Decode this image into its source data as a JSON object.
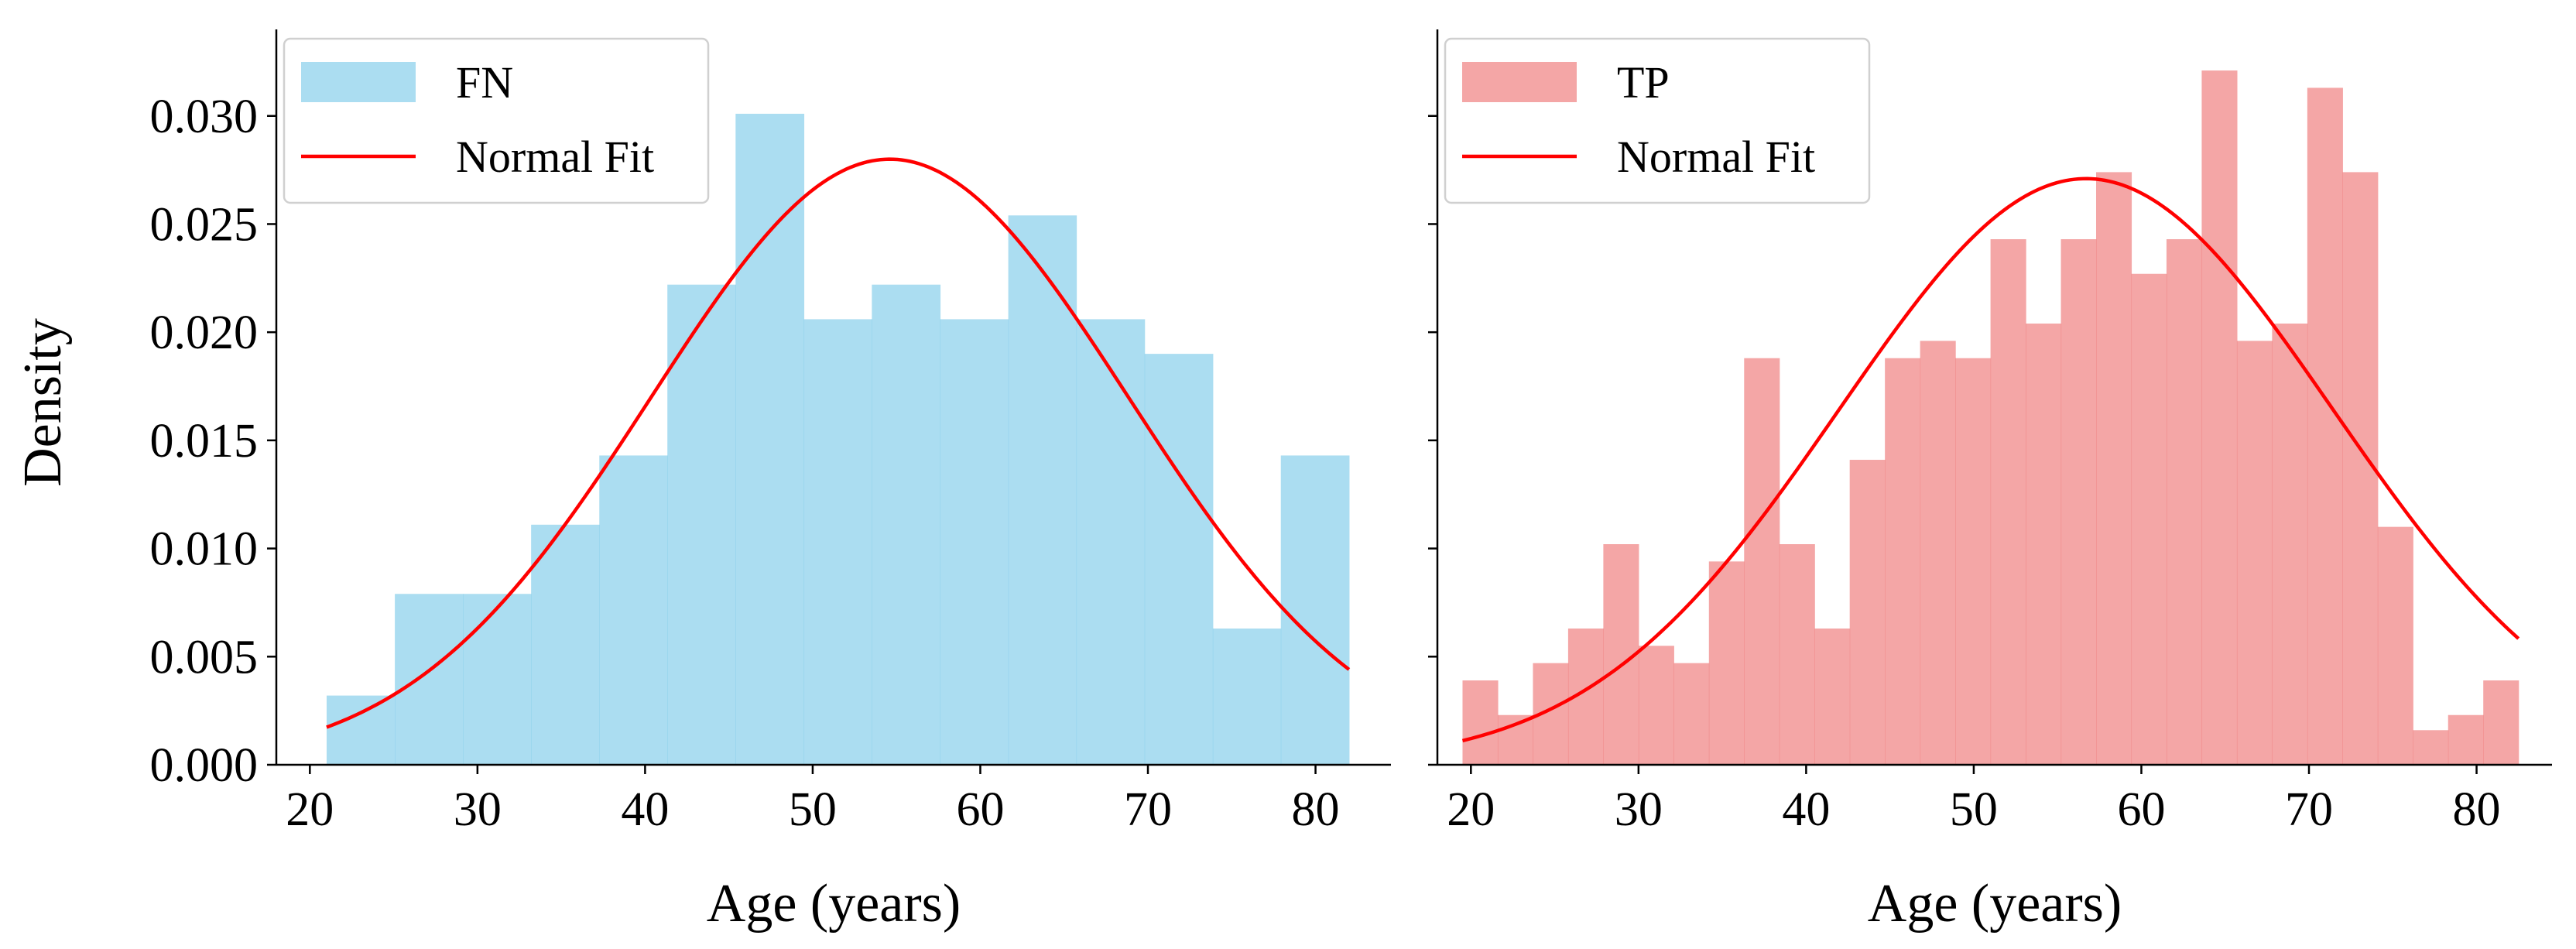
{
  "chart_data": [
    {
      "type": "bar",
      "subtype": "histogram_with_normal_fit",
      "panel": "left",
      "title": "",
      "xlabel": "Age (years)",
      "ylabel": "Density",
      "xlim": [
        18,
        84.5
      ],
      "ylim": [
        0,
        0.034
      ],
      "xticks": [
        20,
        30,
        40,
        50,
        60,
        70,
        80
      ],
      "yticks": [
        0.0,
        0.005,
        0.01,
        0.015,
        0.02,
        0.025,
        0.03
      ],
      "ytick_labels": [
        "0.000",
        "0.005",
        "0.010",
        "0.015",
        "0.020",
        "0.025",
        "0.030"
      ],
      "series": [
        {
          "name": "FN",
          "kind": "histogram",
          "color": "#87CEEB",
          "bin_edges": [
            21,
            25.07,
            29.13,
            33.2,
            37.27,
            41.33,
            45.4,
            49.47,
            53.53,
            57.6,
            61.67,
            65.73,
            69.8,
            73.87,
            77.93,
            82
          ],
          "values": [
            0.0032,
            0.0079,
            0.0079,
            0.0111,
            0.0143,
            0.0222,
            0.0301,
            0.0206,
            0.0222,
            0.0206,
            0.0254,
            0.0206,
            0.019,
            0.0063,
            0.0143
          ]
        },
        {
          "name": "Normal Fit",
          "kind": "line",
          "color": "#FF0000",
          "x_range": [
            21,
            82
          ],
          "mean": 54.6,
          "peak_density": 0.028
        }
      ],
      "legend": {
        "position": "top-left",
        "entries": [
          "FN",
          "Normal Fit"
        ]
      }
    },
    {
      "type": "bar",
      "subtype": "histogram_with_normal_fit",
      "panel": "right",
      "title": "",
      "xlabel": "Age (years)",
      "ylabel": "",
      "xlim": [
        18,
        84.5
      ],
      "ylim": [
        0,
        0.034
      ],
      "xticks": [
        20,
        30,
        40,
        50,
        60,
        70,
        80
      ],
      "yticks": [
        0.0,
        0.005,
        0.01,
        0.015,
        0.02,
        0.025,
        0.03
      ],
      "series": [
        {
          "name": "TP",
          "kind": "histogram",
          "color": "#F08080",
          "bin_edges": [
            19.5,
            21.6,
            23.7,
            25.8,
            27.9,
            30.0,
            32.1,
            34.2,
            36.3,
            38.4,
            40.5,
            42.6,
            44.7,
            46.8,
            48.9,
            51.0,
            53.1,
            55.2,
            57.3,
            59.4,
            61.5,
            63.6,
            65.7,
            67.8,
            69.9,
            72.0,
            74.1,
            76.2,
            78.3,
            80.4,
            82.5
          ],
          "values": [
            0.0039,
            0.0023,
            0.0047,
            0.0063,
            0.0102,
            0.0055,
            0.0047,
            0.0094,
            0.0188,
            0.0102,
            0.0063,
            0.0141,
            0.0188,
            0.0196,
            0.0188,
            0.0243,
            0.0204,
            0.0243,
            0.0274,
            0.0227,
            0.0243,
            0.0321,
            0.0196,
            0.0204,
            0.0313,
            0.0274,
            0.011,
            0.0016,
            0.0023,
            0.0039
          ]
        },
        {
          "name": "Normal Fit",
          "kind": "line",
          "color": "#FF0000",
          "x_range": [
            19.5,
            82.5
          ],
          "mean": 56.7,
          "peak_density": 0.0271
        }
      ],
      "legend": {
        "position": "top-left",
        "entries": [
          "TP",
          "Normal Fit"
        ]
      }
    }
  ]
}
